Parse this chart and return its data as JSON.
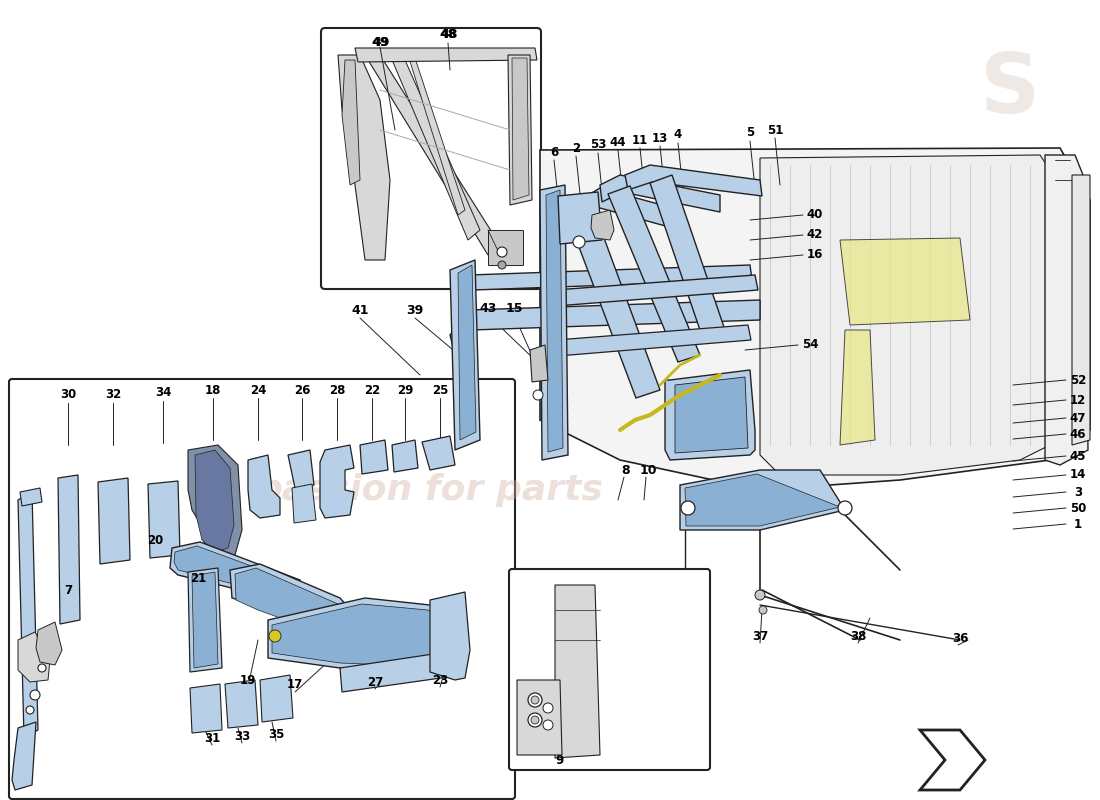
{
  "bg_color": "#ffffff",
  "light_blue": "#b8cfe8",
  "mid_blue": "#8ab0d4",
  "dark_line": "#222222",
  "gray_fill": "#d8d8d8",
  "light_gray": "#c8c8c8",
  "med_gray": "#a8a8a8",
  "yellow_fill": "#e8e890",
  "watermark_text": "passion for parts",
  "watermark_color": "#d4b0a0",
  "figsize": [
    11.0,
    8.0
  ],
  "dpi": 100
}
